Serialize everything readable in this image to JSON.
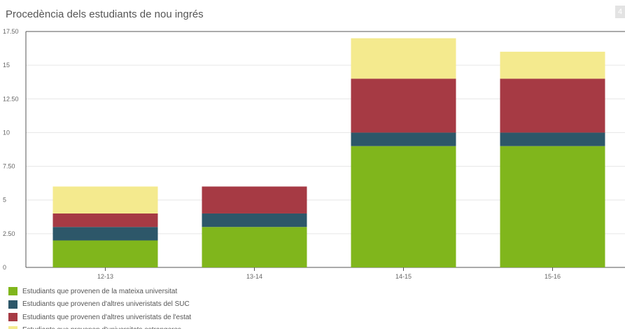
{
  "corner_glyph": "4",
  "chart_data": {
    "type": "bar",
    "stacked": true,
    "title": "Procedència dels estudiants de nou ingrés",
    "xlabel": "",
    "ylabel": "",
    "ylim": [
      0,
      17.5
    ],
    "yticks": [
      "0",
      "2.50",
      "5",
      "7.50",
      "10",
      "12.50",
      "15",
      "17.50"
    ],
    "categories": [
      "12-13",
      "13-14",
      "14-15",
      "15-16"
    ],
    "grid": true,
    "legend_position": "bottom-left",
    "series": [
      {
        "name": "Estudiants que provenen de la mateixa universitat",
        "color": "#80b61c",
        "values": [
          2,
          3,
          9,
          9
        ]
      },
      {
        "name": "Estudiants que provenen d'altres univeristats del SUC",
        "color": "#2d5769",
        "values": [
          1,
          1,
          1,
          1
        ]
      },
      {
        "name": "Estudiants que provenen d'altres univeristats de l'estat",
        "color": "#a63a44",
        "values": [
          1,
          2,
          4,
          4
        ]
      },
      {
        "name": "Estudiants que provenen d'universitats estrangeres",
        "color": "#f4ea8e",
        "values": [
          2,
          0,
          3,
          2
        ]
      }
    ]
  }
}
